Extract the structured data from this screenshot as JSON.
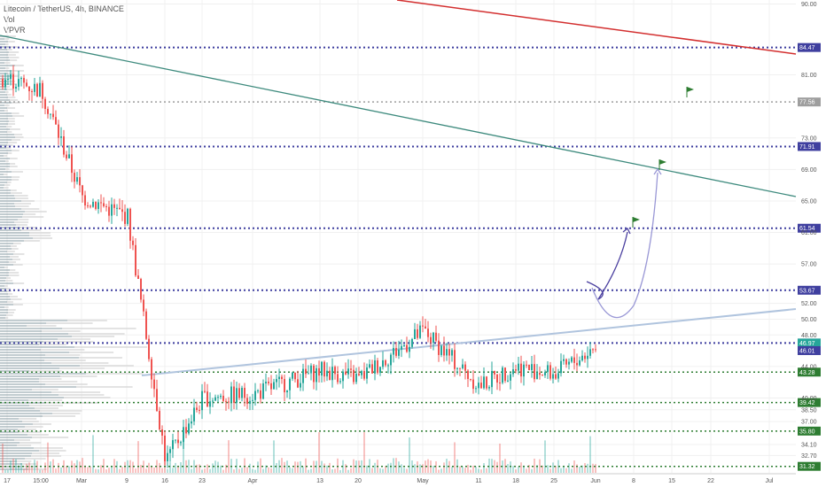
{
  "legend": {
    "title": "Litecoin / TetherUS, 4h, BINANCE",
    "vol": "Vol",
    "vpvr": "VPVR"
  },
  "colors": {
    "up": "#26a69a",
    "down": "#ef5350",
    "level": "#3f3f9f",
    "green_level": "#2e7d32",
    "trend_red": "#d32f2f",
    "trend_teal": "#3d8a7d",
    "support_line": "#b0c4de",
    "arrow_dark": "#4a3f9f",
    "arrow_light": "#9a98d6",
    "flag": "#2e7d32"
  },
  "chart_data": {
    "type": "line",
    "title": "Litecoin / TetherUS, 4h, BINANCE",
    "xlabel": "",
    "ylabel": "",
    "ylim": [
      30.5,
      90.5
    ],
    "x_ticks": [
      "17",
      "15:00",
      "Mar",
      "9",
      "16",
      "23",
      "Apr",
      "13",
      "20",
      "May",
      "11",
      "18",
      "25",
      "Jun",
      "8",
      "15",
      "22",
      "Jul"
    ],
    "y_ticks": [
      "90.00",
      "81.00",
      "73.00",
      "69.00",
      "65.00",
      "61.00",
      "57.00",
      "52.00",
      "50.00",
      "48.00",
      "44.00",
      "40.00",
      "38.50",
      "37.00",
      "34.10",
      "32.70"
    ],
    "series": [
      {
        "x": [
          "17",
          "15:00",
          "Mar",
          "9",
          "16",
          "23",
          "Apr",
          "13",
          "20",
          "May",
          "11",
          "18",
          "25",
          "Jun"
        ],
        "values": [
          80.5,
          79.0,
          65.5,
          63.0,
          32.0,
          40.0,
          40.5,
          43.5,
          42.5,
          48.5,
          41.5,
          44.0,
          43.0,
          46.5
        ]
      }
    ],
    "horizontal_levels": [
      {
        "value": 84.47,
        "label": "84.47",
        "style": "dotted",
        "color": "#3f3f9f"
      },
      {
        "value": 77.56,
        "label": "77.56",
        "style": "dotted",
        "color": "#9e9e9e"
      },
      {
        "value": 71.91,
        "label": "71.91",
        "style": "dotted",
        "color": "#3f3f9f"
      },
      {
        "value": 61.54,
        "label": "61.54",
        "style": "dotted",
        "color": "#3f3f9f"
      },
      {
        "value": 53.67,
        "label": "53.67",
        "style": "dotted",
        "color": "#3f3f9f"
      },
      {
        "value": 46.97,
        "label": "46.97",
        "style": "dotted",
        "color": "#3f3f9f"
      },
      {
        "value": 43.28,
        "label": "43.28",
        "style": "dotted",
        "color": "#2e7d32"
      },
      {
        "value": 39.42,
        "label": "39.42",
        "style": "dotted",
        "color": "#2e7d32"
      },
      {
        "value": 35.8,
        "label": "35.80",
        "style": "dotted",
        "color": "#2e7d32"
      },
      {
        "value": 31.32,
        "label": "31.32",
        "style": "dotted",
        "color": "#2e7d32"
      }
    ],
    "price_badges": [
      {
        "value": 46.97,
        "label": "46.97",
        "color": "#26a69a"
      },
      {
        "value": 46.01,
        "label": "46.01",
        "color": "#3f3f9f"
      }
    ],
    "grid": true
  }
}
